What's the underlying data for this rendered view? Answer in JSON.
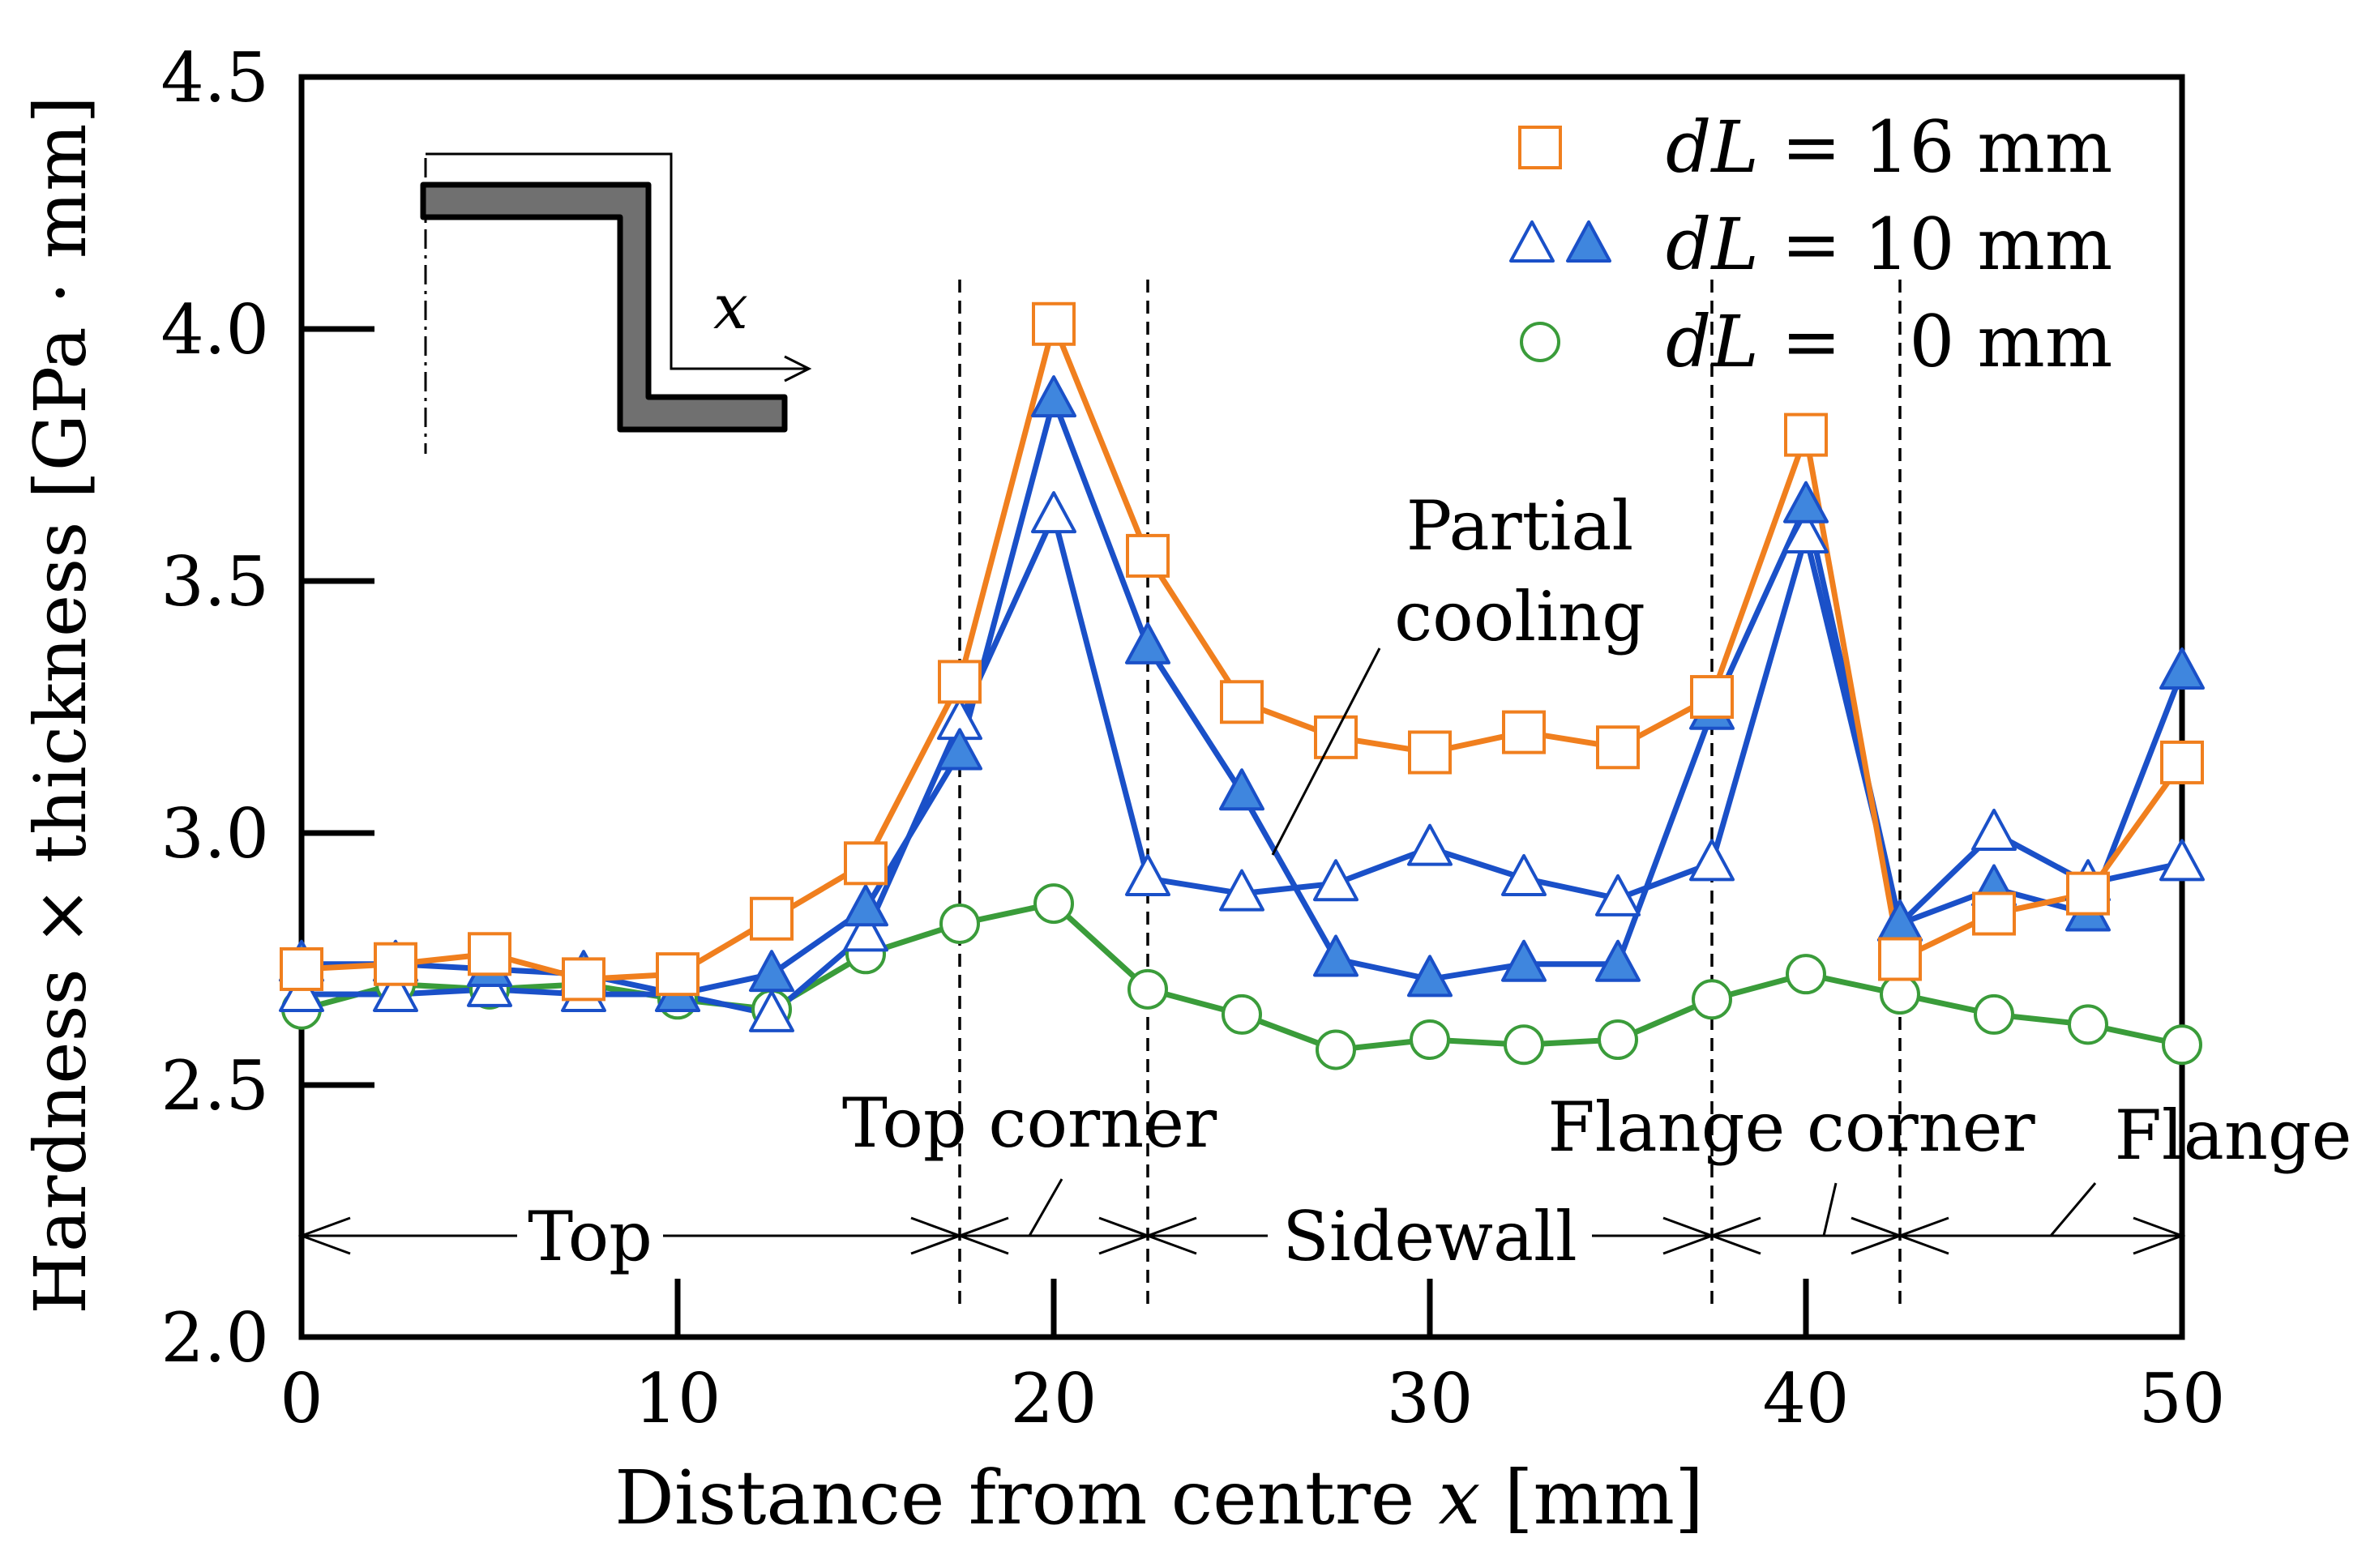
{
  "chart_data": {
    "type": "line",
    "title": "",
    "xlabel_main": "Distance from centre ",
    "xlabel_var": "x",
    "xlabel_unit": " [mm]",
    "ylabel": "Hardness × thickness [GPa · mm]",
    "xlim": [
      0,
      50
    ],
    "ylim": [
      2.0,
      4.5
    ],
    "xticks": [
      0,
      10,
      20,
      30,
      40,
      50
    ],
    "xtick_labels": [
      "0",
      "10",
      "20",
      "30",
      "40",
      "50"
    ],
    "yticks": [
      2.0,
      2.5,
      3.0,
      3.5,
      4.0,
      4.5
    ],
    "ytick_labels": [
      "2.0",
      "2.5",
      "3.0",
      "3.5",
      "4.0",
      "4.5"
    ],
    "x": [
      0,
      2.5,
      5,
      7.5,
      10,
      12.5,
      15,
      17.5,
      20,
      22.5,
      25,
      27.5,
      30,
      32.5,
      35,
      37.5,
      40,
      42.5,
      45,
      47.5,
      50
    ],
    "series": [
      {
        "name": "dL = 16 mm",
        "color": "#F07F1E",
        "marker": "square-open",
        "values": [
          2.73,
          2.74,
          2.76,
          2.71,
          2.72,
          2.83,
          2.94,
          3.3,
          4.01,
          3.55,
          3.26,
          3.19,
          3.16,
          3.2,
          3.17,
          3.27,
          3.79,
          2.75,
          2.84,
          2.88,
          3.14
        ]
      },
      {
        "name": "dL = 10 mm (open)",
        "color": "#1A50C8",
        "marker": "triangle-open",
        "values": [
          2.68,
          2.68,
          2.69,
          2.68,
          2.68,
          2.64,
          2.8,
          3.22,
          3.63,
          2.91,
          2.88,
          2.9,
          2.97,
          2.91,
          2.87,
          2.94,
          3.59,
          2.82,
          3.0,
          2.9,
          2.94
        ]
      },
      {
        "name": "dL = 10 mm (filled)",
        "color": "#1A50C8",
        "marker": "triangle-filled",
        "values": [
          2.74,
          2.74,
          2.73,
          2.72,
          2.68,
          2.72,
          2.85,
          3.16,
          3.86,
          3.37,
          3.08,
          2.75,
          2.71,
          2.74,
          2.74,
          3.24,
          3.65,
          2.82,
          2.89,
          2.84,
          3.32
        ]
      },
      {
        "name": "dL = 0 mm",
        "color": "#3A9C3A",
        "marker": "circle-open",
        "values": [
          2.65,
          2.7,
          2.69,
          2.7,
          2.67,
          2.65,
          2.76,
          2.82,
          2.86,
          2.69,
          2.64,
          2.57,
          2.59,
          2.58,
          2.59,
          2.67,
          2.72,
          2.68,
          2.64,
          2.62,
          2.58
        ]
      }
    ],
    "legend": [
      {
        "var": "dL",
        "rest": " = 16 mm",
        "marker": "square-open",
        "color": "#F07F1E"
      },
      {
        "var": "dL",
        "rest": " = 10 mm",
        "marker": "triangle-both",
        "color": "#1A50C8"
      },
      {
        "var": "dL",
        "rest": " =   0 mm",
        "marker": "circle-open",
        "color": "#3A9C3A"
      }
    ],
    "region_boundaries": [
      17.5,
      22.5,
      37.5,
      42.5
    ],
    "regions": [
      {
        "label": "Top",
        "from": 0,
        "to": 17.5
      },
      {
        "label": "Top corner",
        "from": 17.5,
        "to": 22.5
      },
      {
        "label": "Sidewall",
        "from": 22.5,
        "to": 37.5
      },
      {
        "label": "Flange corner",
        "from": 37.5,
        "to": 42.5
      },
      {
        "label": "Flange",
        "from": 42.5,
        "to": 50
      }
    ],
    "annotation": {
      "line1": "Partial",
      "line2": "cooling"
    },
    "inset_axis_label": "x"
  }
}
